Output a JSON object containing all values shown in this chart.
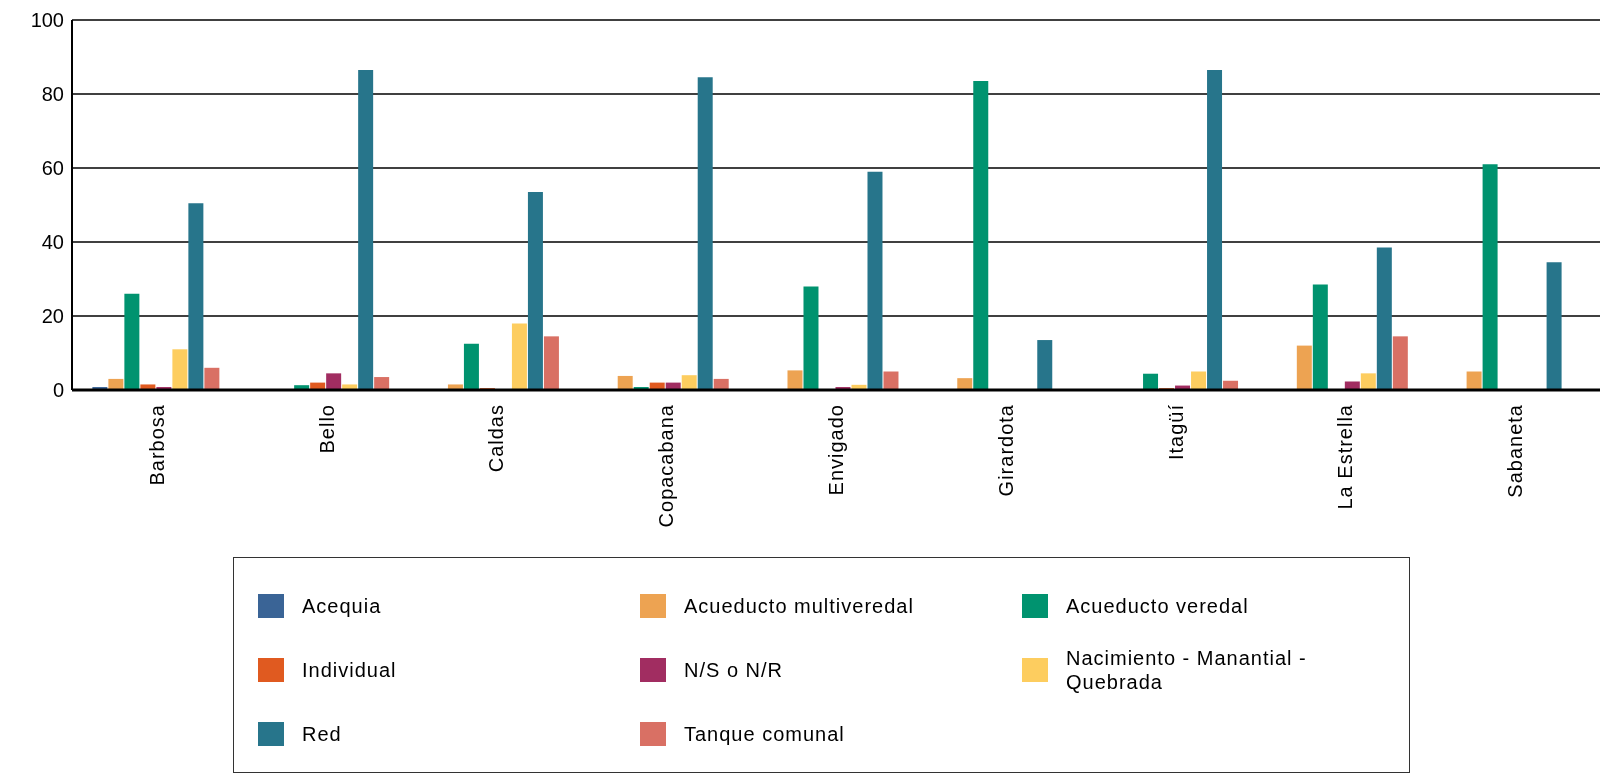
{
  "chart_data": {
    "type": "bar",
    "categories": [
      "Barbosa",
      "Bello",
      "Caldas",
      "Copacabana",
      "Envigado",
      "Girardota",
      "Itagüí",
      "La Estrella",
      "Sabaneta"
    ],
    "series": [
      {
        "name": "Acequia",
        "color": "#3a6496",
        "values": [
          0.8,
          0.2,
          0,
          0,
          0.2,
          0,
          null,
          null,
          0
        ]
      },
      {
        "name": "Acueducto multiveredal",
        "color": "#eda352",
        "values": [
          3,
          null,
          1.5,
          3.8,
          5.3,
          3.2,
          null,
          12,
          5
        ]
      },
      {
        "name": "Acueducto veredal",
        "color": "#00936f",
        "values": [
          26,
          1.3,
          12.5,
          0.8,
          28,
          83.5,
          4.4,
          28.5,
          61
        ]
      },
      {
        "name": "Individual",
        "color": "#e05a20",
        "values": [
          1.5,
          2,
          0.5,
          2,
          null,
          0,
          0.5,
          0,
          0
        ]
      },
      {
        "name": "N/S o N/R",
        "color": "#a12d61",
        "values": [
          0.8,
          4.5,
          0,
          2,
          0.8,
          0,
          1.2,
          2.3,
          0
        ]
      },
      {
        "name": "Nacimiento - Manantial - Quebrada",
        "color": "#fdcd5f",
        "values": [
          11,
          1.5,
          18,
          4,
          1.4,
          0,
          5,
          4.5,
          0
        ]
      },
      {
        "name": "Red",
        "color": "#27758b",
        "values": [
          50.5,
          86.5,
          53.5,
          84.5,
          59,
          13.5,
          86.5,
          38.5,
          34.5
        ]
      },
      {
        "name": "Tanque comunal",
        "color": "#d97064",
        "values": [
          6,
          3.5,
          14.5,
          3,
          5,
          0,
          2.5,
          14.5,
          0
        ]
      }
    ],
    "ylim": [
      0,
      100
    ],
    "yticks": [
      0,
      20,
      40,
      60,
      80,
      100
    ],
    "grid": "y",
    "legend": "bottom"
  }
}
